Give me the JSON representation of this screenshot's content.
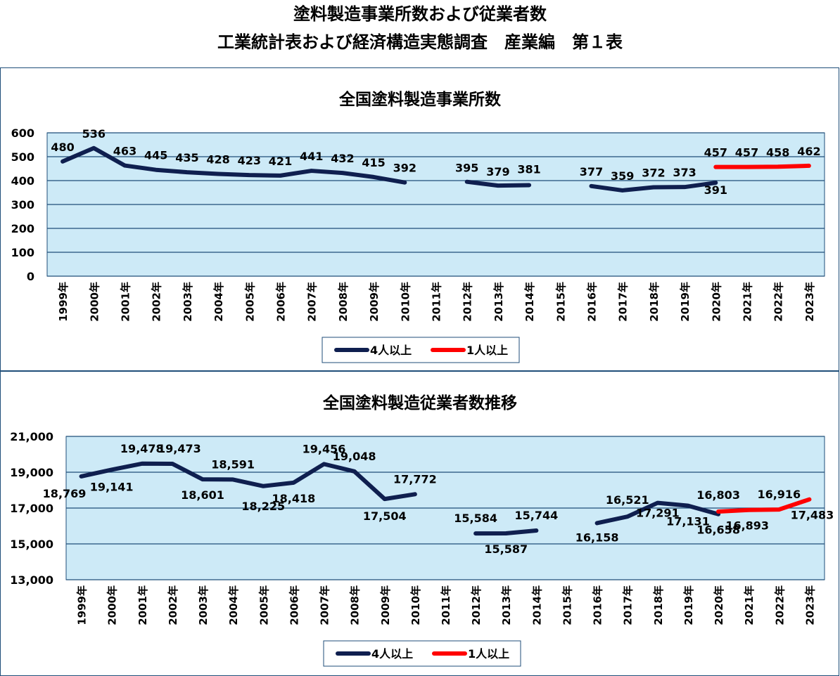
{
  "page": {
    "title_line1": "塗料製造事業所数および従業者数",
    "title_line2": "工業統計表および経済構造実態調査　産業編　第１表"
  },
  "colors": {
    "series4": "#0f1f4f",
    "series1": "#ff0000",
    "plot_bg": "#cdeaf7",
    "grid": "#1f4e79",
    "border": "#1f4e79"
  },
  "chart_data": [
    {
      "type": "line",
      "title": "全国塗料製造事業所数",
      "xlabel": "",
      "ylabel": "",
      "categories": [
        "1999年",
        "2000年",
        "2001年",
        "2002年",
        "2003年",
        "2004年",
        "2005年",
        "2006年",
        "2007年",
        "2008年",
        "2009年",
        "2010年",
        "2011年",
        "2012年",
        "2013年",
        "2014年",
        "2015年",
        "2016年",
        "2017年",
        "2018年",
        "2019年",
        "2020年",
        "2021年",
        "2022年",
        "2023年"
      ],
      "yticks": [
        "0",
        "100",
        "200",
        "300",
        "400",
        "500",
        "600"
      ],
      "ylim": [
        0,
        600
      ],
      "grid": true,
      "legend": "bottom",
      "series": [
        {
          "name": "4人以上",
          "color": "#0f1f4f",
          "values": [
            480,
            536,
            463,
            445,
            435,
            428,
            423,
            421,
            441,
            432,
            415,
            392,
            null,
            395,
            379,
            381,
            null,
            377,
            359,
            372,
            373,
            391,
            null,
            null,
            null
          ],
          "labels": [
            "480",
            "536",
            "463",
            "445",
            "435",
            "428",
            "423",
            "421",
            "441",
            "432",
            "415",
            "392",
            null,
            "395",
            "379",
            "381",
            null,
            "377",
            "359",
            "372",
            "373",
            "391",
            null,
            null,
            null
          ]
        },
        {
          "name": "1人以上",
          "color": "#ff0000",
          "values": [
            null,
            null,
            null,
            null,
            null,
            null,
            null,
            null,
            null,
            null,
            null,
            null,
            null,
            null,
            null,
            null,
            null,
            null,
            null,
            null,
            null,
            457,
            457,
            458,
            462
          ],
          "labels": [
            null,
            null,
            null,
            null,
            null,
            null,
            null,
            null,
            null,
            null,
            null,
            null,
            null,
            null,
            null,
            null,
            null,
            null,
            null,
            null,
            null,
            "457",
            "457",
            "458",
            "462"
          ]
        }
      ]
    },
    {
      "type": "line",
      "title": "全国塗料製造従業者数推移",
      "xlabel": "",
      "ylabel": "",
      "categories": [
        "1999年",
        "2000年",
        "2001年",
        "2002年",
        "2003年",
        "2004年",
        "2005年",
        "2006年",
        "2007年",
        "2008年",
        "2009年",
        "2010年",
        "2011年",
        "2012年",
        "2013年",
        "2014年",
        "2015年",
        "2016年",
        "2017年",
        "2018年",
        "2019年",
        "2020年",
        "2021年",
        "2022年",
        "2023年"
      ],
      "yticks": [
        "13,000",
        "15,000",
        "17,000",
        "19,000",
        "21,000"
      ],
      "ylim": [
        13000,
        21000
      ],
      "grid": true,
      "legend": "bottom",
      "series": [
        {
          "name": "4人以上",
          "color": "#0f1f4f",
          "values": [
            18769,
            19141,
            19478,
            19473,
            18601,
            18591,
            18225,
            18418,
            19456,
            19048,
            17504,
            17772,
            null,
            15584,
            15587,
            15744,
            null,
            16158,
            16521,
            17291,
            17131,
            16658,
            null,
            null,
            null
          ],
          "labels": [
            "18,769",
            "19,141",
            "19,478",
            "19,473",
            "18,601",
            "18,591",
            "18,225",
            "18,418",
            "19,456",
            "19,048",
            "17,504",
            "17,772",
            null,
            "15,584",
            "15,587",
            "15,744",
            null,
            "16,158",
            "16,521",
            "17,291",
            "17,131",
            "16,658",
            null,
            null,
            null
          ]
        },
        {
          "name": "1人以上",
          "color": "#ff0000",
          "values": [
            null,
            null,
            null,
            null,
            null,
            null,
            null,
            null,
            null,
            null,
            null,
            null,
            null,
            null,
            null,
            null,
            null,
            null,
            null,
            null,
            null,
            16803,
            16893,
            16916,
            17483
          ],
          "labels": [
            null,
            null,
            null,
            null,
            null,
            null,
            null,
            null,
            null,
            null,
            null,
            null,
            null,
            null,
            null,
            null,
            null,
            null,
            null,
            null,
            null,
            "16,803",
            "16,893",
            "16,916",
            "17,483"
          ]
        }
      ]
    }
  ]
}
